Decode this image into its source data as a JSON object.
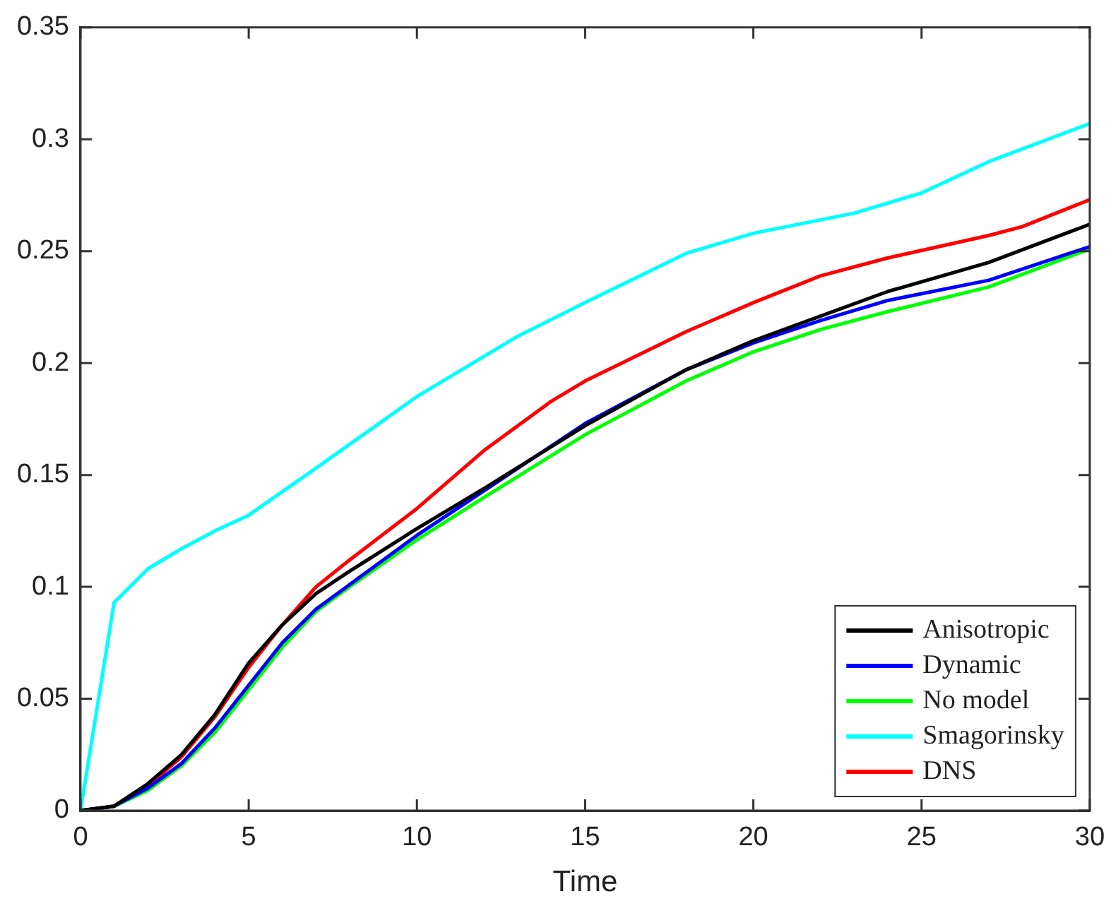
{
  "chart_data": {
    "type": "line",
    "xlabel": "Time",
    "xlim": [
      0,
      30
    ],
    "xticks": [
      0,
      5,
      10,
      15,
      20,
      25,
      30
    ],
    "ylim": [
      0,
      0.35
    ],
    "yticks": [
      0,
      0.05,
      0.1,
      0.15,
      0.2,
      0.25,
      0.3,
      0.35
    ],
    "grid": false,
    "legend": "bottom right",
    "marker": "none",
    "line_style": "solid",
    "series": [
      {
        "name": "Anisotropic",
        "color": "#000000",
        "x": [
          0,
          1,
          2,
          3,
          4,
          5,
          6,
          7,
          8,
          10,
          12,
          15,
          18,
          20,
          22,
          24,
          27,
          30
        ],
        "values": [
          0,
          0.002,
          0.012,
          0.025,
          0.043,
          0.066,
          0.083,
          0.097,
          0.107,
          0.126,
          0.144,
          0.172,
          0.197,
          0.21,
          0.221,
          0.232,
          0.245,
          0.262
        ]
      },
      {
        "name": "Dynamic",
        "color": "#0000ff",
        "x": [
          0,
          1,
          2,
          3,
          4,
          5,
          6,
          7,
          8,
          10,
          12,
          15,
          18,
          20,
          22,
          24,
          27,
          30
        ],
        "values": [
          0,
          0.002,
          0.01,
          0.021,
          0.037,
          0.056,
          0.075,
          0.09,
          0.101,
          0.123,
          0.143,
          0.173,
          0.197,
          0.209,
          0.219,
          0.228,
          0.237,
          0.252
        ]
      },
      {
        "name": "No model",
        "color": "#00ff00",
        "x": [
          0,
          1,
          2,
          3,
          4,
          5,
          6,
          7,
          8,
          10,
          12,
          15,
          18,
          20,
          22,
          24,
          27,
          30
        ],
        "values": [
          0,
          0.002,
          0.009,
          0.02,
          0.035,
          0.054,
          0.073,
          0.089,
          0.1,
          0.121,
          0.14,
          0.168,
          0.192,
          0.205,
          0.215,
          0.223,
          0.234,
          0.251
        ]
      },
      {
        "name": "Smagorinsky",
        "color": "#00ffff",
        "x": [
          0,
          1,
          2,
          3,
          4,
          5,
          7,
          10,
          13,
          15,
          18,
          20,
          23,
          25,
          27,
          30
        ],
        "values": [
          0,
          0.093,
          0.108,
          0.117,
          0.125,
          0.132,
          0.153,
          0.185,
          0.212,
          0.227,
          0.249,
          0.258,
          0.267,
          0.276,
          0.29,
          0.307
        ]
      },
      {
        "name": "DNS",
        "color": "#ff0000",
        "x": [
          0,
          1,
          2,
          3,
          4,
          5,
          6,
          7,
          8,
          10,
          12,
          14,
          15,
          18,
          20,
          22,
          24,
          27,
          28,
          30
        ],
        "values": [
          0,
          0.002,
          0.011,
          0.024,
          0.042,
          0.064,
          0.083,
          0.1,
          0.112,
          0.135,
          0.161,
          0.183,
          0.192,
          0.214,
          0.227,
          0.239,
          0.247,
          0.257,
          0.261,
          0.273
        ]
      }
    ]
  }
}
